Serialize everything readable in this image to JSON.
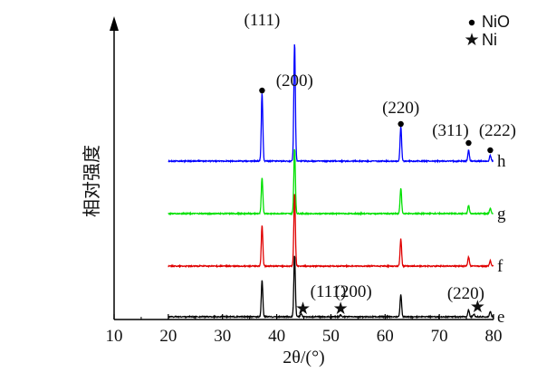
{
  "chart_data": {
    "type": "line",
    "xlabel": "2θ/(°)",
    "ylabel": "相对强度",
    "xlim": [
      10,
      80
    ],
    "xticks": [
      10,
      20,
      30,
      40,
      50,
      60,
      70,
      80
    ],
    "grid": false,
    "legend": [
      {
        "marker": "•",
        "label": "NiO",
        "color": "#000000"
      },
      {
        "marker": "★",
        "label": "Ni",
        "color": "#000000"
      }
    ],
    "series": [
      {
        "name": "h",
        "color": "#0000ff",
        "peaks": [
          {
            "x": 37.3,
            "h": 75
          },
          {
            "x": 43.3,
            "h": 130
          },
          {
            "x": 62.9,
            "h": 38
          },
          {
            "x": 75.4,
            "h": 12
          },
          {
            "x": 79.4,
            "h": 6
          }
        ]
      },
      {
        "name": "g",
        "color": "#00e000",
        "peaks": [
          {
            "x": 37.3,
            "h": 40
          },
          {
            "x": 43.3,
            "h": 72
          },
          {
            "x": 62.9,
            "h": 28
          },
          {
            "x": 75.4,
            "h": 9
          },
          {
            "x": 79.4,
            "h": 6
          }
        ]
      },
      {
        "name": "f",
        "color": "#e00000",
        "peaks": [
          {
            "x": 37.3,
            "h": 45
          },
          {
            "x": 43.3,
            "h": 80
          },
          {
            "x": 62.9,
            "h": 30
          },
          {
            "x": 75.4,
            "h": 10
          },
          {
            "x": 79.4,
            "h": 6
          }
        ]
      },
      {
        "name": "e",
        "color": "#000000",
        "peaks": [
          {
            "x": 37.3,
            "h": 40
          },
          {
            "x": 43.3,
            "h": 68
          },
          {
            "x": 44.5,
            "h": 4
          },
          {
            "x": 51.8,
            "h": 2
          },
          {
            "x": 62.9,
            "h": 25
          },
          {
            "x": 75.4,
            "h": 8
          },
          {
            "x": 76.4,
            "h": 3
          },
          {
            "x": 79.4,
            "h": 6
          }
        ]
      }
    ],
    "annotations": [
      {
        "text": "(111)",
        "x": 37.3,
        "marker": "•"
      },
      {
        "text": "(200)",
        "x": 43.3
      },
      {
        "text": "(220)",
        "x": 62.9,
        "marker": "•"
      },
      {
        "text": "(311)",
        "x": 75.4,
        "marker": "•"
      },
      {
        "text": "(222)",
        "x": 79.4,
        "marker": "•"
      },
      {
        "text": "(111)",
        "x": 44.5,
        "marker": "★"
      },
      {
        "text": "(200)",
        "x": 51.8,
        "marker": "★"
      },
      {
        "text": "(220)",
        "x": 76.4,
        "marker": "★"
      }
    ]
  }
}
